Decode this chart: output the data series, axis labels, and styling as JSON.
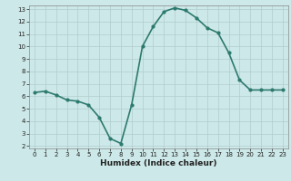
{
  "x": [
    0,
    1,
    2,
    3,
    4,
    5,
    6,
    7,
    8,
    9,
    10,
    11,
    12,
    13,
    14,
    15,
    16,
    17,
    18,
    19,
    20,
    21,
    22,
    23
  ],
  "y": [
    6.3,
    6.4,
    6.1,
    5.7,
    5.6,
    5.3,
    4.3,
    2.6,
    2.2,
    5.3,
    10.0,
    11.6,
    12.8,
    13.1,
    12.9,
    12.3,
    11.5,
    11.1,
    9.5,
    7.3,
    6.5,
    6.5,
    6.5,
    6.5
  ],
  "xlabel": "Humidex (Indice chaleur)",
  "ylim": [
    1.8,
    13.3
  ],
  "xlim": [
    -0.5,
    23.5
  ],
  "yticks": [
    2,
    3,
    4,
    5,
    6,
    7,
    8,
    9,
    10,
    11,
    12,
    13
  ],
  "xticks": [
    0,
    1,
    2,
    3,
    4,
    5,
    6,
    7,
    8,
    9,
    10,
    11,
    12,
    13,
    14,
    15,
    16,
    17,
    18,
    19,
    20,
    21,
    22,
    23
  ],
  "line_color": "#2d7a6e",
  "marker": "o",
  "marker_size": 2.0,
  "bg_color": "#cde8e8",
  "grid_color": "#b0cccc",
  "line_width": 1.2,
  "tick_fontsize": 5.0,
  "xlabel_fontsize": 6.5,
  "spine_color": "#888888"
}
